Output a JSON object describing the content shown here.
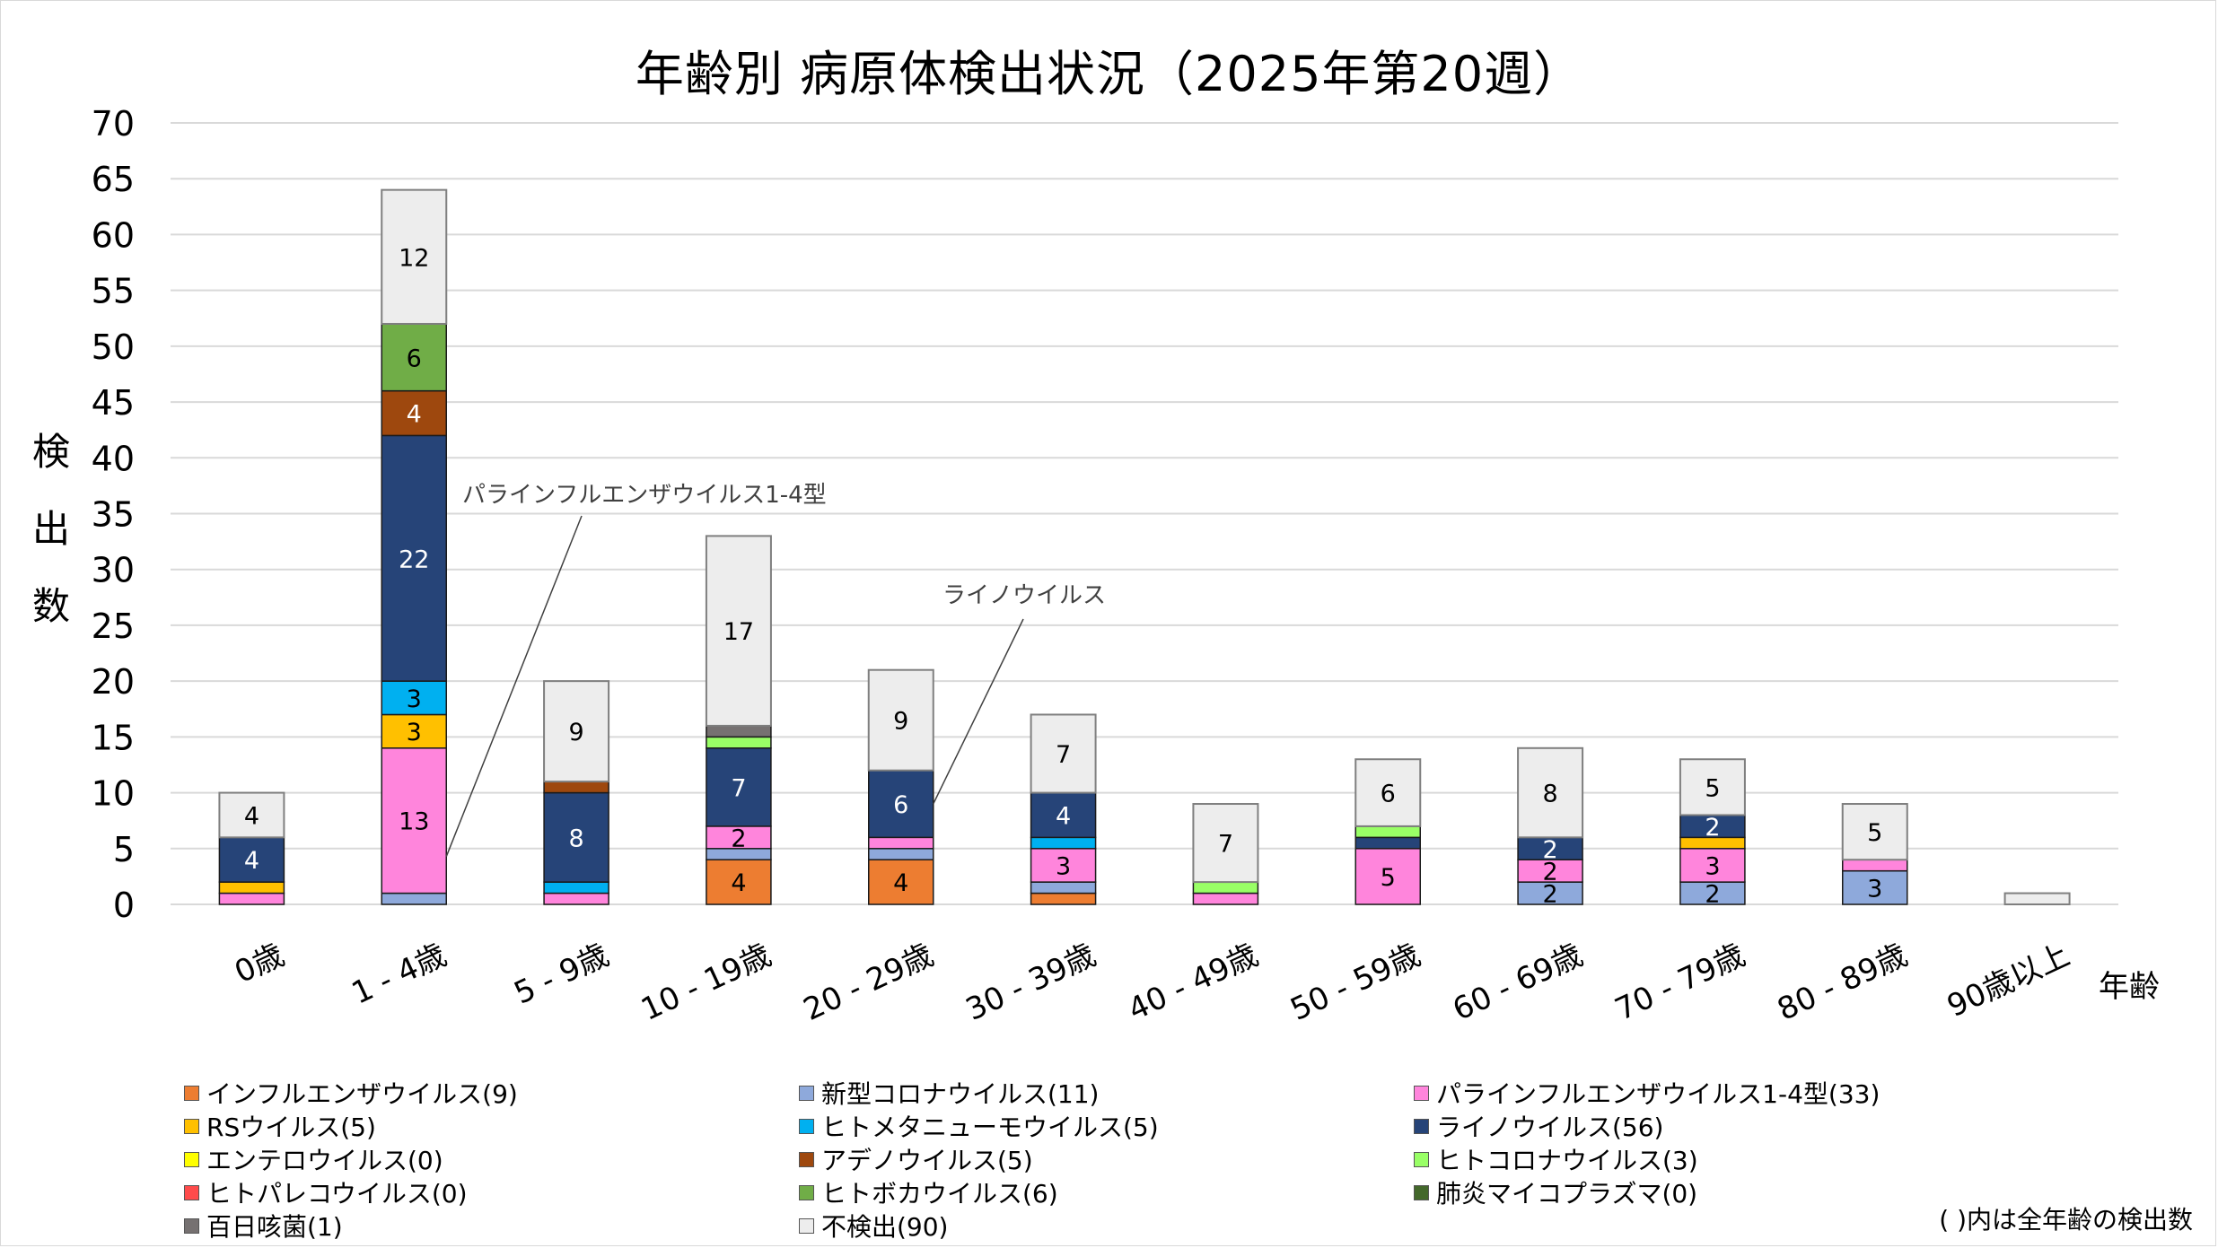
{
  "chart_data": {
    "type": "bar",
    "stacked": true,
    "title": "年齢別 病原体検出状況（2025年第20週）",
    "xlabel": "年齢",
    "ylabel": "検出数",
    "ylim": [
      0,
      70
    ],
    "ytick_step": 5,
    "yticks": [
      "0",
      "5",
      "10",
      "15",
      "20",
      "25",
      "30",
      "35",
      "40",
      "45",
      "50",
      "55",
      "60",
      "65",
      "70"
    ],
    "grid": true,
    "legend_position": "bottom",
    "legend_note": "( )内は全年齢の検出数",
    "categories": [
      "0歳",
      "1 - 4歳",
      "5 - 9歳",
      "10 - 19歳",
      "20 - 29歳",
      "30 - 39歳",
      "40 - 49歳",
      "50 - 59歳",
      "60 - 69歳",
      "70 - 79歳",
      "80 - 89歳",
      "90歳以上"
    ],
    "series": [
      {
        "name": "インフルエンザウイルス",
        "total": 9,
        "color": "#ED7D31",
        "label_color": "#000000",
        "values": [
          0,
          0,
          0,
          4,
          4,
          1,
          0,
          0,
          0,
          0,
          0,
          0
        ]
      },
      {
        "name": "新型コロナウイルス",
        "total": 11,
        "color": "#8EA9DB",
        "label_color": "#000000",
        "values": [
          0,
          1,
          0,
          1,
          1,
          1,
          0,
          0,
          2,
          2,
          3,
          0
        ]
      },
      {
        "name": "パラインフルエンザウイルス1-4型",
        "total": 33,
        "color": "#FF85DC",
        "label_color": "#000000",
        "values": [
          1,
          13,
          1,
          2,
          1,
          3,
          1,
          5,
          2,
          3,
          1,
          0
        ]
      },
      {
        "name": "RSウイルス",
        "total": 5,
        "color": "#FFC000",
        "label_color": "#000000",
        "values": [
          1,
          3,
          0,
          0,
          0,
          0,
          0,
          0,
          0,
          1,
          0,
          0
        ]
      },
      {
        "name": "ヒトメタニューモウイルス",
        "total": 5,
        "color": "#00B0F0",
        "label_color": "#000000",
        "values": [
          0,
          3,
          1,
          0,
          0,
          1,
          0,
          0,
          0,
          0,
          0,
          0
        ]
      },
      {
        "name": "ライノウイルス",
        "total": 56,
        "color": "#264478",
        "label_color": "#FFFFFF",
        "values": [
          4,
          22,
          8,
          7,
          6,
          4,
          0,
          1,
          2,
          2,
          0,
          0
        ]
      },
      {
        "name": "エンテロウイルス",
        "total": 0,
        "color": "#FFFF00",
        "label_color": "#000000",
        "values": [
          0,
          0,
          0,
          0,
          0,
          0,
          0,
          0,
          0,
          0,
          0,
          0
        ]
      },
      {
        "name": "アデノウイルス",
        "total": 5,
        "color": "#9E480E",
        "label_color": "#FFFFFF",
        "values": [
          0,
          4,
          1,
          0,
          0,
          0,
          0,
          0,
          0,
          0,
          0,
          0
        ]
      },
      {
        "name": "ヒトコロナウイルス",
        "total": 3,
        "color": "#99FF66",
        "label_color": "#000000",
        "values": [
          0,
          0,
          0,
          1,
          0,
          0,
          1,
          1,
          0,
          0,
          0,
          0
        ]
      },
      {
        "name": "ヒトパレコウイルス",
        "total": 0,
        "color": "#FF4B4B",
        "label_color": "#000000",
        "values": [
          0,
          0,
          0,
          0,
          0,
          0,
          0,
          0,
          0,
          0,
          0,
          0
        ]
      },
      {
        "name": "ヒトボカウイルス",
        "total": 6,
        "color": "#70AD47",
        "label_color": "#000000",
        "values": [
          0,
          6,
          0,
          0,
          0,
          0,
          0,
          0,
          0,
          0,
          0,
          0
        ]
      },
      {
        "name": "肺炎マイコプラズマ",
        "total": 0,
        "color": "#43682B",
        "label_color": "#FFFFFF",
        "values": [
          0,
          0,
          0,
          0,
          0,
          0,
          0,
          0,
          0,
          0,
          0,
          0
        ]
      },
      {
        "name": "百日咳菌",
        "total": 1,
        "color": "#767171",
        "label_color": "#FFFFFF",
        "values": [
          0,
          0,
          0,
          1,
          0,
          0,
          0,
          0,
          0,
          0,
          0,
          0
        ]
      },
      {
        "name": "不検出",
        "total": 90,
        "color": "#EDEDED",
        "label_color": "#000000",
        "values": [
          4,
          12,
          9,
          17,
          9,
          7,
          7,
          6,
          8,
          5,
          5,
          1
        ]
      }
    ],
    "data_label_min": 2,
    "annotations": [
      {
        "text": "パラインフルエンザウイルス1-4型",
        "category": "1 - 4歳",
        "series": "パラインフルエンザウイルス1-4型"
      },
      {
        "text": "ライノウイルス",
        "category": "20 - 29歳",
        "series": "ライノウイルス"
      }
    ]
  },
  "legend_order": [
    "インフルエンザウイルス",
    "新型コロナウイルス",
    "パラインフルエンザウイルス1-4型",
    "RSウイルス",
    "ヒトメタニューモウイルス",
    "ライノウイルス",
    "エンテロウイルス",
    "アデノウイルス",
    "ヒトコロナウイルス",
    "ヒトパレコウイルス",
    "ヒトボカウイルス",
    "肺炎マイコプラズマ",
    "百日咳菌",
    "不検出"
  ]
}
